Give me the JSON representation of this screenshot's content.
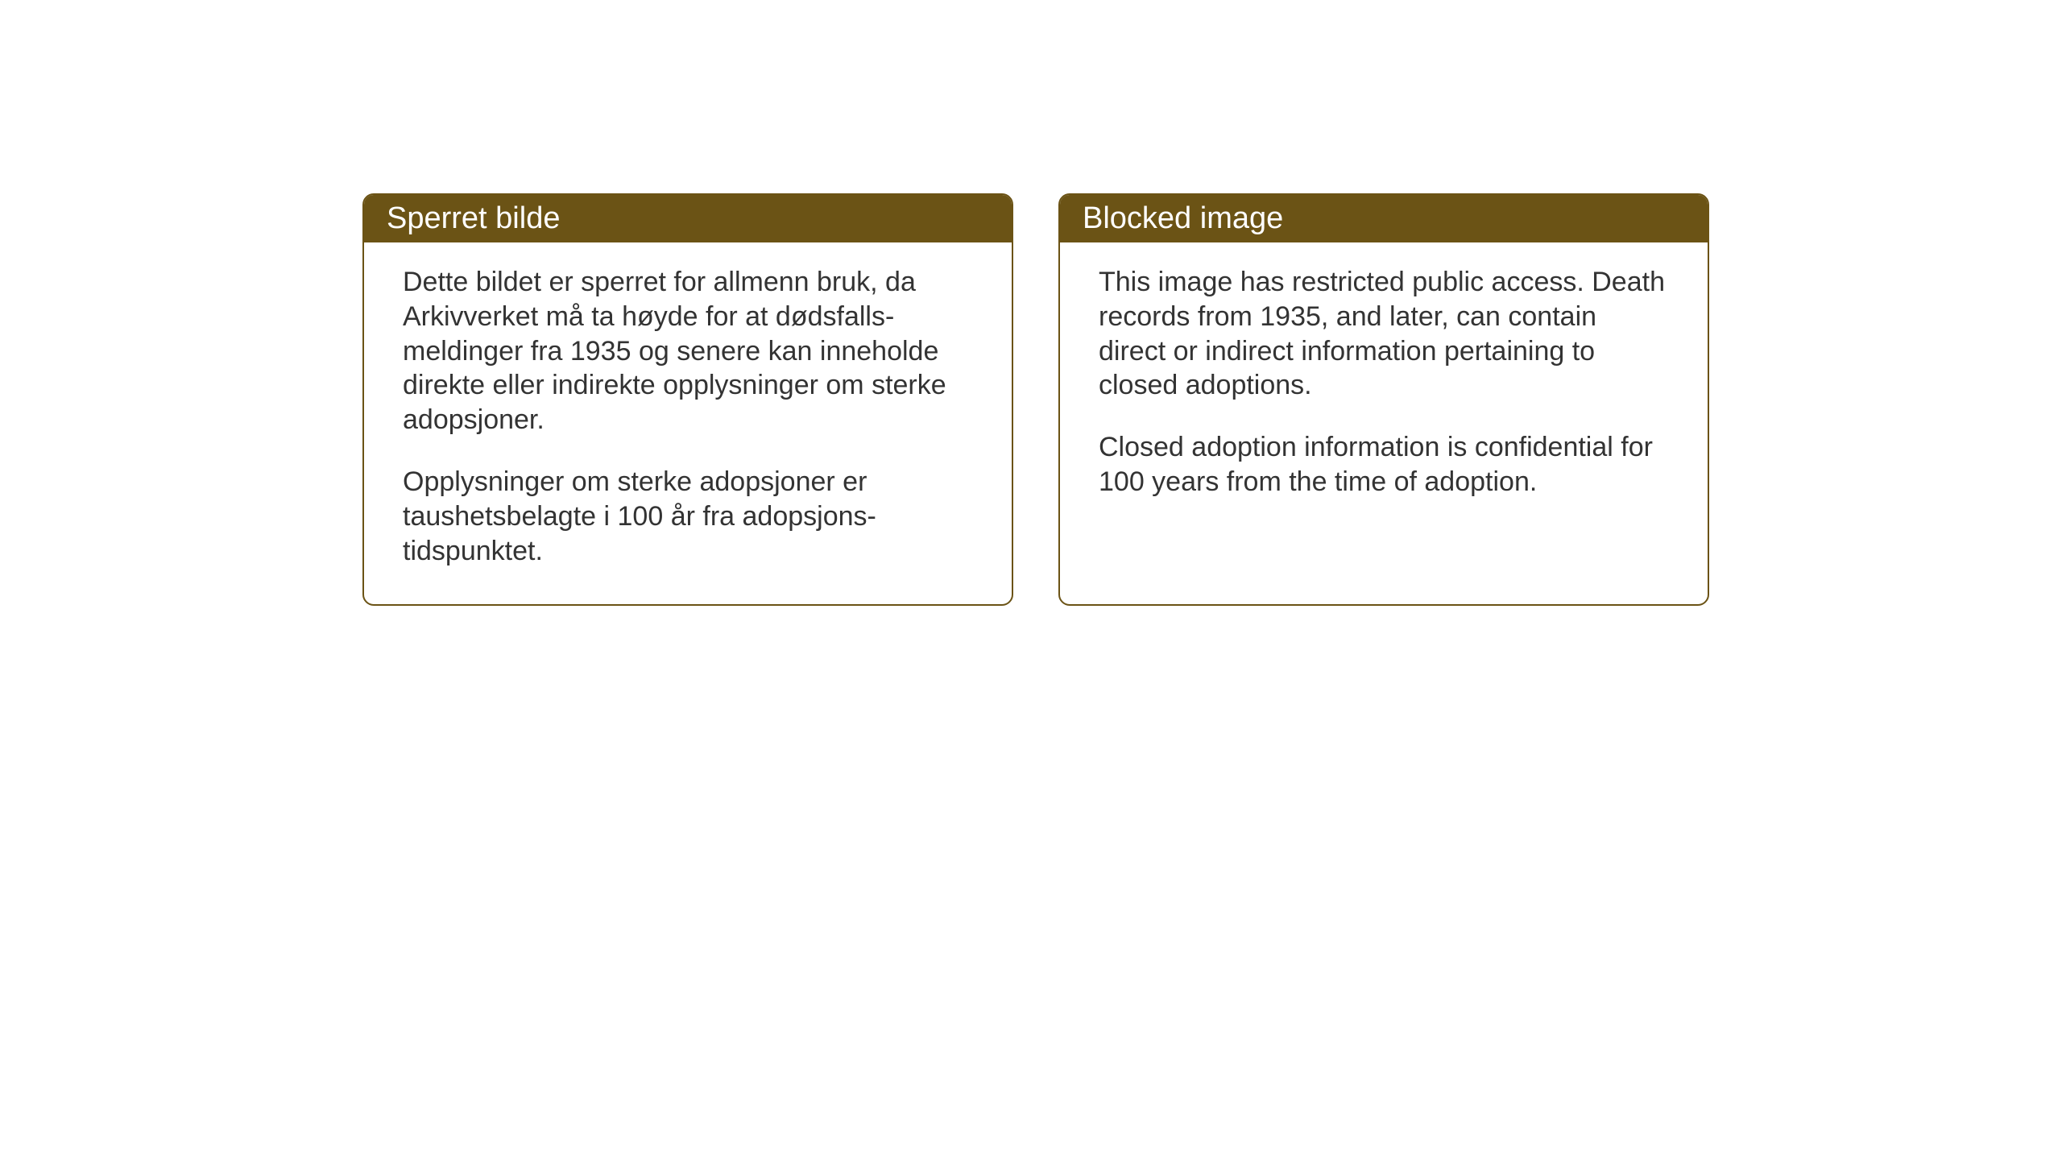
{
  "background_color": "#ffffff",
  "card_border_color": "#6b5315",
  "header_bg_color": "#6b5315",
  "header_text_color": "#ffffff",
  "body_text_color": "#333333",
  "card_border_radius": 14,
  "header_fontsize": 38,
  "body_fontsize": 34,
  "cards": {
    "norwegian": {
      "title": "Sperret bilde",
      "paragraph1": "Dette bildet er sperret for allmenn bruk, da Arkivverket må ta høyde for at dødsfalls-meldinger fra 1935 og senere kan inneholde direkte eller indirekte opplysninger om sterke adopsjoner.",
      "paragraph2": "Opplysninger om sterke adopsjoner er taushetsbelagte i 100 år fra adopsjons-tidspunktet."
    },
    "english": {
      "title": "Blocked image",
      "paragraph1": "This image has restricted public access. Death records from 1935, and later, can contain direct or indirect information pertaining to closed adoptions.",
      "paragraph2": "Closed adoption information is confidential for 100 years from the time of adoption."
    }
  }
}
